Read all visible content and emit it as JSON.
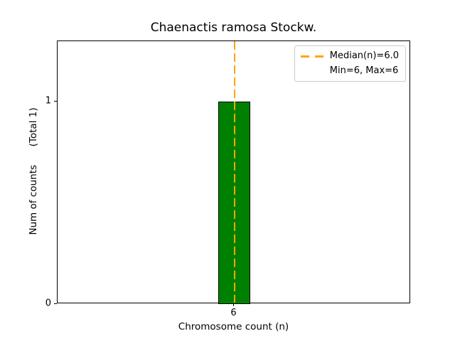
{
  "chart_data": {
    "type": "bar",
    "title": "Chaenactis ramosa Stockw.",
    "xlabel": "Chromosome count (n)",
    "ylabel": "Num of counts      (Total 1)",
    "categories": [
      6
    ],
    "values": [
      1
    ],
    "total_counts": 1,
    "bar_width_units": 0.9,
    "xlim": [
      1,
      11
    ],
    "ylim": [
      0,
      1.3
    ],
    "grid": false,
    "x_ticks": [
      {
        "value": 6,
        "label": "6"
      }
    ],
    "y_ticks": [
      {
        "value": 0,
        "label": "0"
      },
      {
        "value": 1,
        "label": "1"
      }
    ],
    "median_line": {
      "x": 6.0,
      "style": "dashed"
    },
    "colors": {
      "bar_fill": "#008000",
      "bar_edge": "#000000",
      "median_line": "#FFA500",
      "axes": "#000000",
      "legend_border": "#cccccc"
    },
    "legend": {
      "position": "upper-right",
      "entries": [
        {
          "label": "Median(n)=6.0",
          "handle": "orange-dashed-line"
        },
        {
          "label": "Min=6, Max=6",
          "handle": "none"
        }
      ]
    }
  }
}
